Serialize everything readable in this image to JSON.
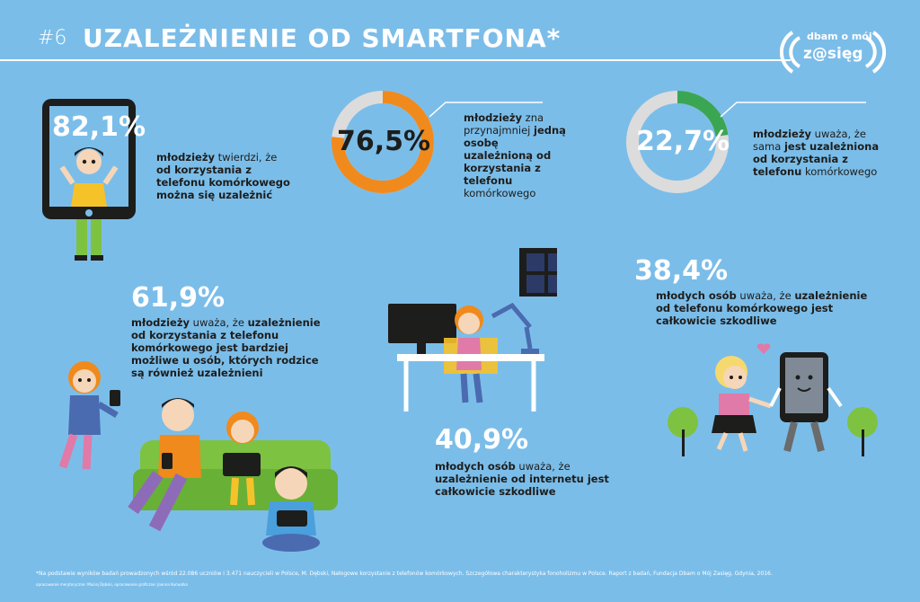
{
  "header": {
    "number": "#6",
    "title": "UZALEŻNIENIE OD SMARTFONA*"
  },
  "logo": {
    "line1": "dbam o mój",
    "line2": "z@sięg"
  },
  "stats": {
    "s1": {
      "value": "82,1%",
      "part1": "młodzieży",
      "part2": " twierdzi, że ",
      "part3": "od korzystania z telefonu komórkowego można się uzależnić"
    },
    "s2": {
      "value": "76,5%",
      "part1": "młodzieży",
      "part2": " zna przynajmniej ",
      "part3": "jedną osobę uzależnioną od korzystania z telefonu",
      "part4": " komórkowego",
      "fraction": 0.765
    },
    "s3": {
      "value": "22,7%",
      "part1": "młodzieży",
      "part2": " uważa, że sama ",
      "part3": "jest uzależniona od korzystania z telefonu",
      "part4": " komórkowego",
      "fraction": 0.227
    },
    "s4": {
      "value": "61,9%",
      "part1": "młodzieży",
      "part2": " uważa, że ",
      "part3": "uzależnienie od korzystania z telefonu komórkowego jest bardziej możliwe u osób, których rodzice są również uzależnieni"
    },
    "s5": {
      "value": "40,9%",
      "part1": "młodych osób",
      "part2": " uważa, że ",
      "part3": "uzależnienie od internetu jest całkowicie szkodliwe"
    },
    "s6": {
      "value": "38,4%",
      "part1": "młodych osób",
      "part2": " uważa, że ",
      "part3": "uzależnienie od telefonu komórkowego jest całkowicie szkodliwe"
    }
  },
  "footnote": "*Na podstawie wyników badań prowadzonych wśród 22.086 uczniów i 3.471 nauczycieli w Polsce, M. Dębski, Nałogowe korzystanie z telefonów komórkowych. Szczegółowa charakterystyka fonoholizmu w Polsce. Raport z badań, Fundacja Dbam o Mój Zasięg, Gdynia, 2016.",
  "credits": "opracowanie merytoryczne: Maciej Dębski, opracowanie graficzne: Joanna Kucwalka",
  "colors": {
    "background": "#7bbde9",
    "orange": "#f08a1c",
    "green": "#3aa653",
    "ring_gray": "#dcdcdc",
    "dark": "#1d1d1b"
  }
}
